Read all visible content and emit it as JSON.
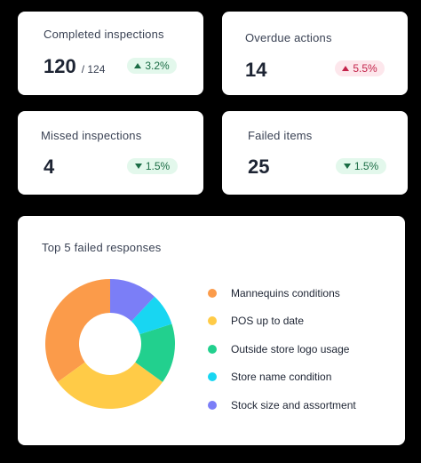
{
  "metrics": [
    {
      "title": "Completed inspections",
      "value": "120",
      "suffix": "/ 124",
      "badge": "3.2%",
      "direction": "up",
      "tone": "green"
    },
    {
      "title": "Overdue actions",
      "value": "14",
      "suffix": "",
      "badge": "5.5%",
      "direction": "up",
      "tone": "red"
    },
    {
      "title": "Missed inspections",
      "value": "4",
      "suffix": "",
      "badge": "1.5%",
      "direction": "down",
      "tone": "green"
    },
    {
      "title": "Failed items",
      "value": "25",
      "suffix": "",
      "badge": "1.5%",
      "direction": "down",
      "tone": "green"
    }
  ],
  "chart_card": {
    "title": "Top 5 failed responses"
  },
  "chart_data": {
    "type": "pie",
    "donut": true,
    "title": "Top 5 failed responses",
    "legend_position": "right",
    "categories": [
      "Mannequins conditions",
      "POS up to date",
      "Outside store logo usage",
      "Store name condition",
      "Stock size and assortment"
    ],
    "values": [
      35,
      30,
      15,
      8,
      12
    ],
    "colors": [
      "#fb9b4a",
      "#ffcb47",
      "#22d08e",
      "#18d6f2",
      "#7b7ef7"
    ]
  }
}
